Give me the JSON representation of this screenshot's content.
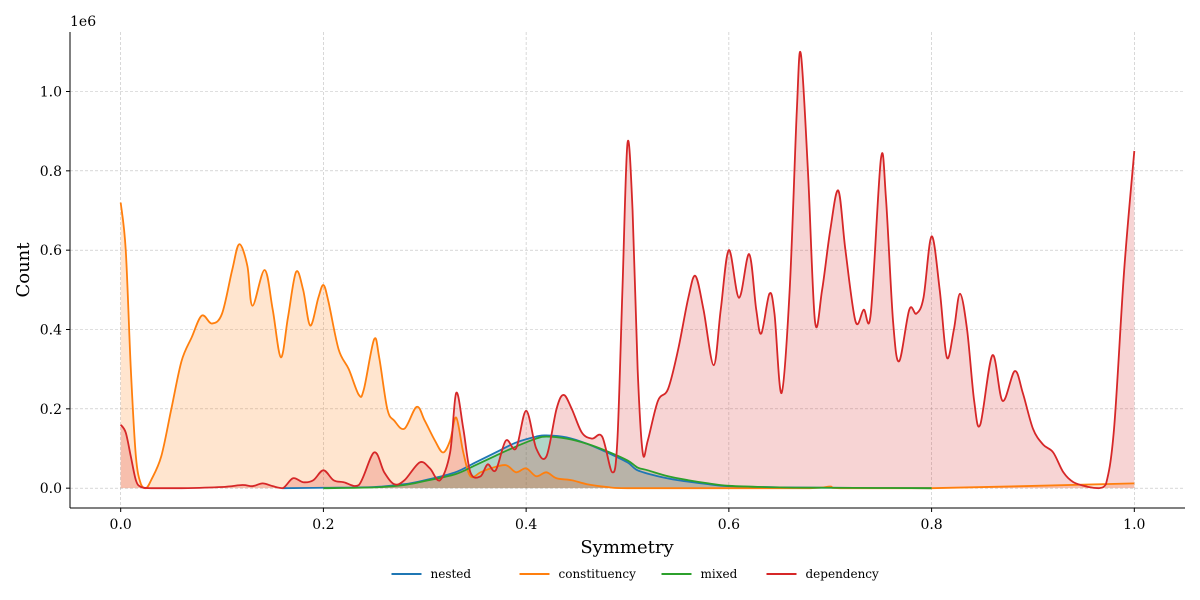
{
  "chart_data": {
    "type": "area",
    "xlabel": "Symmetry",
    "ylabel": "Count",
    "y_scale_label": "1e6",
    "xlim": [
      -0.05,
      1.05
    ],
    "ylim": [
      -0.05,
      1.15
    ],
    "x_ticks": [
      {
        "value": 0.0,
        "label": "0.0"
      },
      {
        "value": 0.2,
        "label": "0.2"
      },
      {
        "value": 0.4,
        "label": "0.4"
      },
      {
        "value": 0.6,
        "label": "0.6"
      },
      {
        "value": 0.8,
        "label": "0.8"
      },
      {
        "value": 1.0,
        "label": "1.0"
      }
    ],
    "y_ticks": [
      {
        "value": 0.0,
        "label": "0.0"
      },
      {
        "value": 0.2,
        "label": "0.2"
      },
      {
        "value": 0.4,
        "label": "0.4"
      },
      {
        "value": 0.6,
        "label": "0.6"
      },
      {
        "value": 0.8,
        "label": "0.8"
      },
      {
        "value": 1.0,
        "label": "1.0"
      }
    ],
    "grid": true,
    "legend_position": "bottom-center",
    "series": [
      {
        "name": "nested",
        "color": "#1f77b4",
        "points": [
          [
            0.16,
            0.0
          ],
          [
            0.2,
            0.001
          ],
          [
            0.25,
            0.003
          ],
          [
            0.28,
            0.01
          ],
          [
            0.3,
            0.02
          ],
          [
            0.33,
            0.04
          ],
          [
            0.35,
            0.065
          ],
          [
            0.37,
            0.09
          ],
          [
            0.39,
            0.115
          ],
          [
            0.41,
            0.13
          ],
          [
            0.42,
            0.133
          ],
          [
            0.44,
            0.128
          ],
          [
            0.46,
            0.112
          ],
          [
            0.48,
            0.09
          ],
          [
            0.5,
            0.065
          ],
          [
            0.51,
            0.045
          ],
          [
            0.53,
            0.03
          ],
          [
            0.55,
            0.02
          ],
          [
            0.58,
            0.01
          ],
          [
            0.6,
            0.005
          ],
          [
            0.65,
            0.002
          ],
          [
            0.7,
            0.001
          ],
          [
            0.8,
            0.0
          ]
        ]
      },
      {
        "name": "constituency",
        "color": "#ff7f0e",
        "points": [
          [
            0.0,
            0.72
          ],
          [
            0.005,
            0.6
          ],
          [
            0.01,
            0.3
          ],
          [
            0.015,
            0.08
          ],
          [
            0.02,
            0.01
          ],
          [
            0.025,
            0.0
          ],
          [
            0.03,
            0.02
          ],
          [
            0.04,
            0.08
          ],
          [
            0.05,
            0.2
          ],
          [
            0.06,
            0.32
          ],
          [
            0.07,
            0.38
          ],
          [
            0.08,
            0.435
          ],
          [
            0.09,
            0.415
          ],
          [
            0.1,
            0.44
          ],
          [
            0.11,
            0.55
          ],
          [
            0.117,
            0.615
          ],
          [
            0.125,
            0.56
          ],
          [
            0.13,
            0.46
          ],
          [
            0.142,
            0.55
          ],
          [
            0.15,
            0.45
          ],
          [
            0.158,
            0.33
          ],
          [
            0.165,
            0.43
          ],
          [
            0.173,
            0.545
          ],
          [
            0.18,
            0.5
          ],
          [
            0.187,
            0.41
          ],
          [
            0.195,
            0.48
          ],
          [
            0.2,
            0.512
          ],
          [
            0.205,
            0.47
          ],
          [
            0.215,
            0.35
          ],
          [
            0.225,
            0.3
          ],
          [
            0.235,
            0.235
          ],
          [
            0.24,
            0.25
          ],
          [
            0.25,
            0.375
          ],
          [
            0.255,
            0.33
          ],
          [
            0.263,
            0.2
          ],
          [
            0.27,
            0.17
          ],
          [
            0.28,
            0.15
          ],
          [
            0.292,
            0.205
          ],
          [
            0.3,
            0.17
          ],
          [
            0.31,
            0.12
          ],
          [
            0.318,
            0.09
          ],
          [
            0.325,
            0.12
          ],
          [
            0.331,
            0.178
          ],
          [
            0.338,
            0.09
          ],
          [
            0.345,
            0.03
          ],
          [
            0.355,
            0.04
          ],
          [
            0.365,
            0.05
          ],
          [
            0.38,
            0.058
          ],
          [
            0.39,
            0.04
          ],
          [
            0.4,
            0.05
          ],
          [
            0.41,
            0.03
          ],
          [
            0.42,
            0.04
          ],
          [
            0.43,
            0.025
          ],
          [
            0.445,
            0.02
          ],
          [
            0.46,
            0.01
          ],
          [
            0.48,
            0.003
          ],
          [
            0.5,
            0.0
          ],
          [
            0.6,
            0.0
          ],
          [
            0.68,
            0.0
          ],
          [
            0.7,
            0.004
          ],
          [
            0.71,
            0.0
          ],
          [
            0.8,
            0.0
          ],
          [
            1.0,
            0.012
          ]
        ]
      },
      {
        "name": "mixed",
        "color": "#2ca02c",
        "points": [
          [
            0.2,
            0.0
          ],
          [
            0.25,
            0.002
          ],
          [
            0.28,
            0.008
          ],
          [
            0.3,
            0.018
          ],
          [
            0.33,
            0.035
          ],
          [
            0.35,
            0.058
          ],
          [
            0.37,
            0.082
          ],
          [
            0.39,
            0.105
          ],
          [
            0.41,
            0.125
          ],
          [
            0.42,
            0.13
          ],
          [
            0.44,
            0.125
          ],
          [
            0.46,
            0.112
          ],
          [
            0.48,
            0.093
          ],
          [
            0.5,
            0.07
          ],
          [
            0.51,
            0.052
          ],
          [
            0.52,
            0.045
          ],
          [
            0.54,
            0.03
          ],
          [
            0.56,
            0.02
          ],
          [
            0.58,
            0.012
          ],
          [
            0.6,
            0.006
          ],
          [
            0.65,
            0.002
          ],
          [
            0.7,
            0.001
          ],
          [
            0.8,
            0.0
          ]
        ]
      },
      {
        "name": "dependency",
        "color": "#d62728",
        "points": [
          [
            0.0,
            0.16
          ],
          [
            0.005,
            0.14
          ],
          [
            0.01,
            0.08
          ],
          [
            0.015,
            0.02
          ],
          [
            0.02,
            0.003
          ],
          [
            0.03,
            0.0
          ],
          [
            0.06,
            0.0
          ],
          [
            0.1,
            0.003
          ],
          [
            0.12,
            0.008
          ],
          [
            0.13,
            0.005
          ],
          [
            0.14,
            0.012
          ],
          [
            0.15,
            0.005
          ],
          [
            0.16,
            0.0
          ],
          [
            0.17,
            0.025
          ],
          [
            0.18,
            0.015
          ],
          [
            0.19,
            0.02
          ],
          [
            0.2,
            0.045
          ],
          [
            0.21,
            0.02
          ],
          [
            0.22,
            0.015
          ],
          [
            0.235,
            0.008
          ],
          [
            0.25,
            0.09
          ],
          [
            0.26,
            0.04
          ],
          [
            0.27,
            0.01
          ],
          [
            0.28,
            0.02
          ],
          [
            0.295,
            0.065
          ],
          [
            0.305,
            0.05
          ],
          [
            0.315,
            0.02
          ],
          [
            0.325,
            0.09
          ],
          [
            0.331,
            0.24
          ],
          [
            0.338,
            0.15
          ],
          [
            0.345,
            0.04
          ],
          [
            0.355,
            0.03
          ],
          [
            0.362,
            0.06
          ],
          [
            0.37,
            0.045
          ],
          [
            0.38,
            0.12
          ],
          [
            0.39,
            0.1
          ],
          [
            0.4,
            0.195
          ],
          [
            0.41,
            0.1
          ],
          [
            0.42,
            0.08
          ],
          [
            0.43,
            0.2
          ],
          [
            0.437,
            0.235
          ],
          [
            0.445,
            0.2
          ],
          [
            0.455,
            0.14
          ],
          [
            0.465,
            0.125
          ],
          [
            0.475,
            0.13
          ],
          [
            0.485,
            0.04
          ],
          [
            0.49,
            0.12
          ],
          [
            0.495,
            0.5
          ],
          [
            0.5,
            0.87
          ],
          [
            0.505,
            0.7
          ],
          [
            0.51,
            0.3
          ],
          [
            0.515,
            0.09
          ],
          [
            0.52,
            0.12
          ],
          [
            0.53,
            0.22
          ],
          [
            0.54,
            0.25
          ],
          [
            0.55,
            0.35
          ],
          [
            0.56,
            0.48
          ],
          [
            0.567,
            0.535
          ],
          [
            0.575,
            0.45
          ],
          [
            0.585,
            0.31
          ],
          [
            0.592,
            0.45
          ],
          [
            0.6,
            0.6
          ],
          [
            0.61,
            0.48
          ],
          [
            0.62,
            0.59
          ],
          [
            0.627,
            0.45
          ],
          [
            0.632,
            0.39
          ],
          [
            0.64,
            0.49
          ],
          [
            0.645,
            0.44
          ],
          [
            0.652,
            0.24
          ],
          [
            0.66,
            0.5
          ],
          [
            0.667,
            0.95
          ],
          [
            0.671,
            1.095
          ],
          [
            0.678,
            0.8
          ],
          [
            0.685,
            0.42
          ],
          [
            0.692,
            0.5
          ],
          [
            0.7,
            0.65
          ],
          [
            0.708,
            0.75
          ],
          [
            0.715,
            0.6
          ],
          [
            0.725,
            0.42
          ],
          [
            0.733,
            0.45
          ],
          [
            0.74,
            0.44
          ],
          [
            0.75,
            0.83
          ],
          [
            0.755,
            0.73
          ],
          [
            0.762,
            0.42
          ],
          [
            0.768,
            0.32
          ],
          [
            0.778,
            0.45
          ],
          [
            0.785,
            0.44
          ],
          [
            0.792,
            0.48
          ],
          [
            0.8,
            0.635
          ],
          [
            0.808,
            0.5
          ],
          [
            0.815,
            0.33
          ],
          [
            0.822,
            0.4
          ],
          [
            0.828,
            0.49
          ],
          [
            0.835,
            0.4
          ],
          [
            0.842,
            0.22
          ],
          [
            0.848,
            0.16
          ],
          [
            0.86,
            0.335
          ],
          [
            0.87,
            0.22
          ],
          [
            0.882,
            0.295
          ],
          [
            0.89,
            0.24
          ],
          [
            0.9,
            0.15
          ],
          [
            0.91,
            0.11
          ],
          [
            0.92,
            0.09
          ],
          [
            0.93,
            0.04
          ],
          [
            0.94,
            0.015
          ],
          [
            0.955,
            0.003
          ],
          [
            0.965,
            0.0
          ],
          [
            0.972,
            0.01
          ],
          [
            0.98,
            0.15
          ],
          [
            0.99,
            0.55
          ],
          [
            1.0,
            0.85
          ]
        ]
      }
    ]
  }
}
